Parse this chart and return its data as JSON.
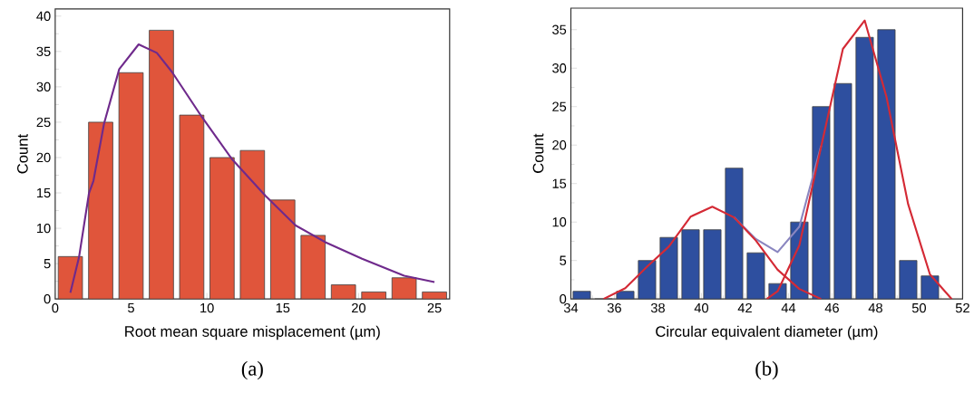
{
  "chart_data": [
    {
      "type": "bar",
      "xlabel": "Root mean square misplacement (µm)",
      "ylabel": "Count",
      "annotations": [
        "(a)"
      ],
      "xlim": [
        0,
        26
      ],
      "ylim": [
        0,
        41
      ],
      "xticks": [
        0,
        5,
        10,
        15,
        20,
        25
      ],
      "yticks": [
        0,
        5,
        10,
        15,
        20,
        25,
        30,
        35,
        40
      ],
      "series": [
        {
          "color": "#e0553b",
          "x": [
            1,
            3,
            5,
            7,
            9,
            11,
            13,
            15,
            17,
            19,
            21,
            23,
            25
          ],
          "values": [
            6,
            25,
            32,
            38,
            26,
            20,
            21,
            14,
            9,
            2,
            1,
            3,
            1
          ]
        },
        {
          "type": "line",
          "color": "#6f2a8c",
          "x": [
            1,
            1.57,
            2.23,
            2.52,
            3.22,
            4.22,
            5.5,
            6.7,
            7.7,
            9.68,
            11.68,
            13.86,
            15.85,
            17.84,
            20.23,
            23,
            25
          ],
          "values": [
            0.9,
            5.9,
            15,
            16.7,
            24.8,
            32.5,
            36,
            34.8,
            32.1,
            25.7,
            19.7,
            14.6,
            10.4,
            8,
            5.7,
            3.3,
            2.4
          ]
        }
      ]
    },
    {
      "type": "bar",
      "xlabel": "Circular equivalent diameter (µm)",
      "ylabel": "Count",
      "annotations": [
        "(b)"
      ],
      "xlim": [
        34,
        52
      ],
      "ylim": [
        0,
        37.8
      ],
      "xticks": [
        34,
        36,
        38,
        40,
        42,
        44,
        46,
        48,
        50,
        52
      ],
      "yticks": [
        0,
        5,
        10,
        15,
        20,
        25,
        30,
        35
      ],
      "series": [
        {
          "color": "#2e4f9f",
          "x": [
            34.5,
            35.5,
            36.5,
            37.5,
            38.5,
            39.5,
            40.5,
            41.5,
            42.5,
            43.5,
            44.5,
            45.5,
            46.5,
            47.5,
            48.5,
            49.5,
            50.5
          ],
          "values": [
            1,
            0,
            1,
            5,
            8,
            9,
            9,
            17,
            6,
            2,
            10,
            25,
            28,
            34,
            35,
            5,
            3
          ]
        },
        {
          "type": "line",
          "color": "#8a86c0",
          "x": [
            41.5,
            42.5,
            43.5,
            44.5,
            45.5
          ],
          "values": [
            10.6,
            7.8,
            6.1,
            9.4,
            19.9
          ]
        },
        {
          "type": "line",
          "color": "#d42a35",
          "x": [
            35.5,
            36.5,
            37.5,
            38.5,
            39.5,
            40.5,
            41.5,
            42.5,
            43.5,
            44.5,
            45.5
          ],
          "values": [
            0,
            1.4,
            4.2,
            6.8,
            10.7,
            12,
            10.6,
            7.6,
            3.8,
            1.3,
            0
          ]
        },
        {
          "type": "line",
          "color": "#d42a35",
          "x": [
            43,
            43.5,
            44.5,
            45.5,
            46.5,
            47.5,
            48.5,
            49.5,
            50.5,
            51.5
          ],
          "values": [
            0,
            1,
            7,
            19.8,
            32.5,
            36.2,
            26.3,
            12.3,
            3.2,
            0
          ]
        }
      ]
    }
  ]
}
